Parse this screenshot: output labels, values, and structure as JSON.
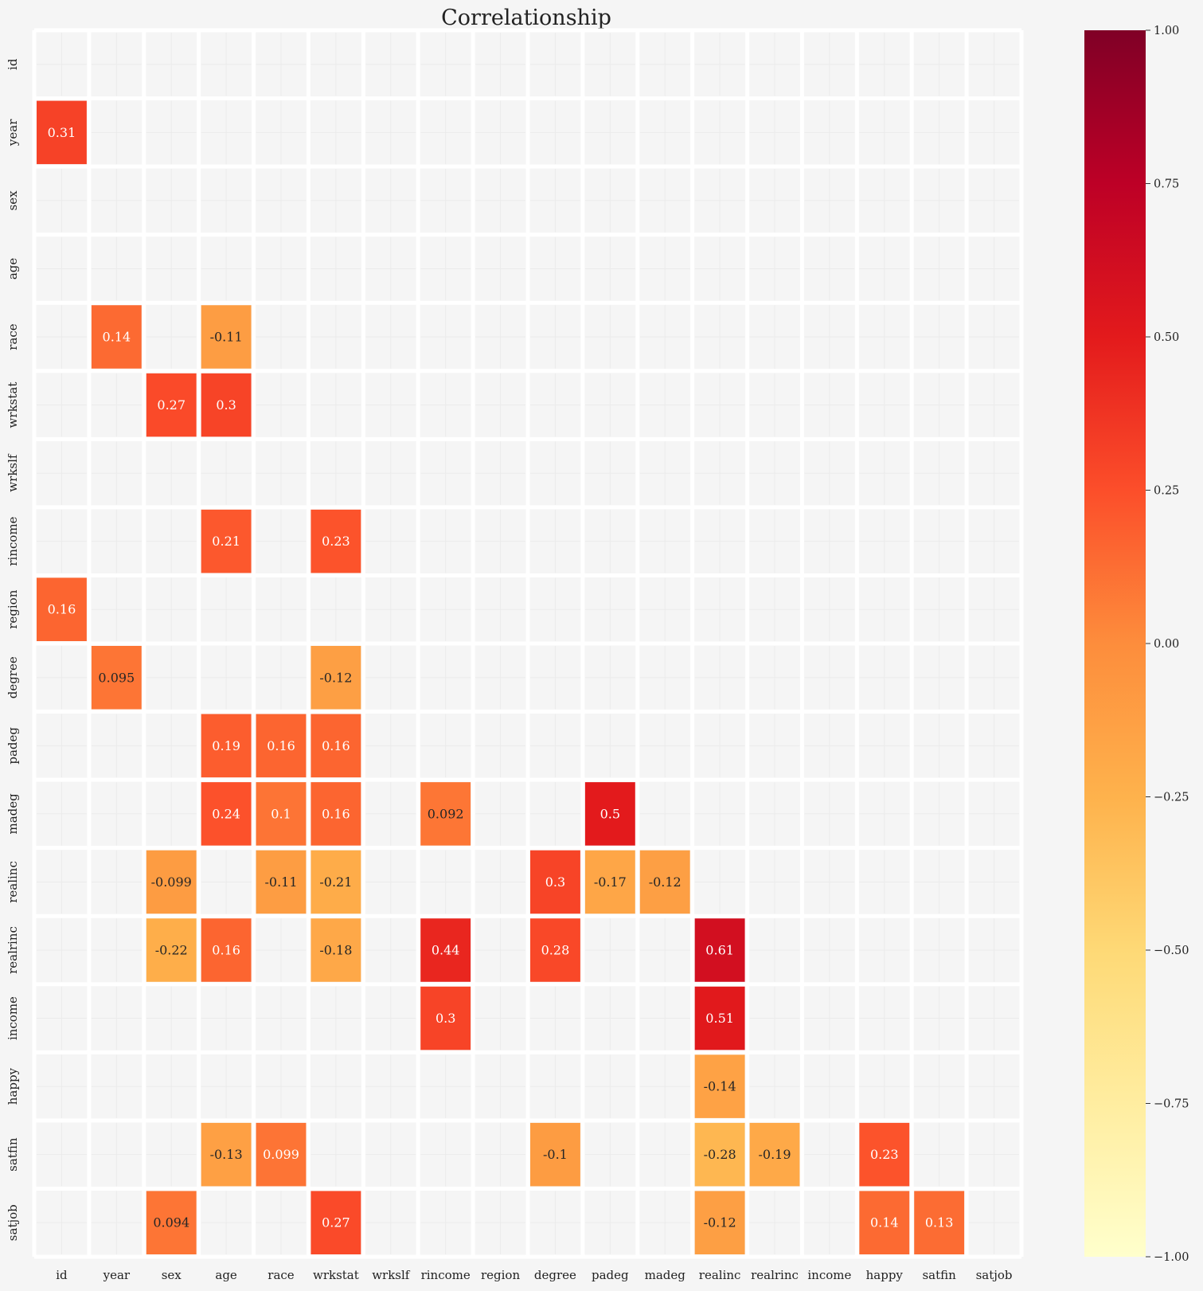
{
  "chart_data": {
    "type": "heatmap",
    "title": "Correlationship",
    "xlabel": "",
    "ylabel": "",
    "variables": [
      "id",
      "year",
      "sex",
      "age",
      "race",
      "wrkstat",
      "wrkslf",
      "rincome",
      "region",
      "degree",
      "padeg",
      "madeg",
      "realinc",
      "realrinc",
      "income",
      "happy",
      "satfin",
      "satjob"
    ],
    "cells": [
      {
        "row": "year",
        "col": "id",
        "value": 0.31,
        "label": "0.31"
      },
      {
        "row": "race",
        "col": "year",
        "value": 0.14,
        "label": "0.14"
      },
      {
        "row": "race",
        "col": "age",
        "value": -0.11,
        "label": "-0.11"
      },
      {
        "row": "wrkstat",
        "col": "sex",
        "value": 0.27,
        "label": "0.27"
      },
      {
        "row": "wrkstat",
        "col": "age",
        "value": 0.3,
        "label": "0.3"
      },
      {
        "row": "rincome",
        "col": "age",
        "value": 0.21,
        "label": "0.21"
      },
      {
        "row": "rincome",
        "col": "wrkstat",
        "value": 0.23,
        "label": "0.23"
      },
      {
        "row": "region",
        "col": "id",
        "value": 0.16,
        "label": "0.16"
      },
      {
        "row": "degree",
        "col": "year",
        "value": 0.095,
        "label": "0.095"
      },
      {
        "row": "degree",
        "col": "wrkstat",
        "value": -0.12,
        "label": "-0.12"
      },
      {
        "row": "padeg",
        "col": "age",
        "value": 0.19,
        "label": "0.19"
      },
      {
        "row": "padeg",
        "col": "race",
        "value": 0.16,
        "label": "0.16"
      },
      {
        "row": "padeg",
        "col": "wrkstat",
        "value": 0.16,
        "label": "0.16"
      },
      {
        "row": "madeg",
        "col": "age",
        "value": 0.24,
        "label": "0.24"
      },
      {
        "row": "madeg",
        "col": "race",
        "value": 0.1,
        "label": "0.1"
      },
      {
        "row": "madeg",
        "col": "wrkstat",
        "value": 0.16,
        "label": "0.16"
      },
      {
        "row": "madeg",
        "col": "rincome",
        "value": 0.092,
        "label": "0.092"
      },
      {
        "row": "madeg",
        "col": "padeg",
        "value": 0.5,
        "label": "0.5"
      },
      {
        "row": "realinc",
        "col": "sex",
        "value": -0.099,
        "label": "-0.099"
      },
      {
        "row": "realinc",
        "col": "race",
        "value": -0.11,
        "label": "-0.11"
      },
      {
        "row": "realinc",
        "col": "wrkstat",
        "value": -0.21,
        "label": "-0.21"
      },
      {
        "row": "realinc",
        "col": "degree",
        "value": 0.3,
        "label": "0.3"
      },
      {
        "row": "realinc",
        "col": "padeg",
        "value": -0.17,
        "label": "-0.17"
      },
      {
        "row": "realinc",
        "col": "madeg",
        "value": -0.12,
        "label": "-0.12"
      },
      {
        "row": "realrinc",
        "col": "sex",
        "value": -0.22,
        "label": "-0.22"
      },
      {
        "row": "realrinc",
        "col": "age",
        "value": 0.16,
        "label": "0.16"
      },
      {
        "row": "realrinc",
        "col": "wrkstat",
        "value": -0.18,
        "label": "-0.18"
      },
      {
        "row": "realrinc",
        "col": "rincome",
        "value": 0.44,
        "label": "0.44"
      },
      {
        "row": "realrinc",
        "col": "degree",
        "value": 0.28,
        "label": "0.28"
      },
      {
        "row": "realrinc",
        "col": "realinc",
        "value": 0.61,
        "label": "0.61"
      },
      {
        "row": "income",
        "col": "rincome",
        "value": 0.3,
        "label": "0.3"
      },
      {
        "row": "income",
        "col": "realinc",
        "value": 0.51,
        "label": "0.51"
      },
      {
        "row": "happy",
        "col": "realinc",
        "value": -0.14,
        "label": "-0.14"
      },
      {
        "row": "satfin",
        "col": "age",
        "value": -0.13,
        "label": "-0.13"
      },
      {
        "row": "satfin",
        "col": "race",
        "value": 0.099,
        "label": "0.099"
      },
      {
        "row": "satfin",
        "col": "degree",
        "value": -0.1,
        "label": "-0.1"
      },
      {
        "row": "satfin",
        "col": "realinc",
        "value": -0.28,
        "label": "-0.28"
      },
      {
        "row": "satfin",
        "col": "realrinc",
        "value": -0.19,
        "label": "-0.19"
      },
      {
        "row": "satfin",
        "col": "happy",
        "value": 0.23,
        "label": "0.23"
      },
      {
        "row": "satjob",
        "col": "sex",
        "value": 0.094,
        "label": "0.094"
      },
      {
        "row": "satjob",
        "col": "wrkstat",
        "value": 0.27,
        "label": "0.27"
      },
      {
        "row": "satjob",
        "col": "realinc",
        "value": -0.12,
        "label": "-0.12"
      },
      {
        "row": "satjob",
        "col": "happy",
        "value": 0.14,
        "label": "0.14"
      },
      {
        "row": "satjob",
        "col": "satfin",
        "value": 0.13,
        "label": "0.13"
      }
    ],
    "colorbar": {
      "range": [
        -1,
        1
      ],
      "ticks": [
        "1.00",
        "0.75",
        "0.50",
        "0.25",
        "0.00",
        "−0.25",
        "−0.50",
        "−0.75",
        "−1.00"
      ],
      "colormap": "YlOrRd",
      "stops": [
        "#ffffcc",
        "#ffeda0",
        "#fed976",
        "#feb24c",
        "#fd8d3c",
        "#fc4e2a",
        "#e31a1c",
        "#bd0026",
        "#800026"
      ]
    },
    "grid": true,
    "colors": {
      "background": "#f5f5f5",
      "cell_border": "#ffffff",
      "empty_cell": "#f5f5f5"
    }
  }
}
